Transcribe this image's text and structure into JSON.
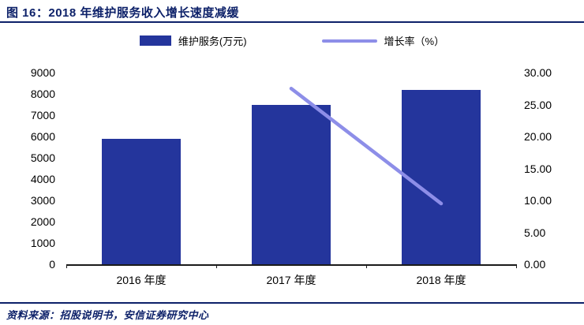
{
  "header": {
    "title": "图 16：2018 年维护服务收入增长速度减缓"
  },
  "legend": {
    "bar_label": "维护服务(万元)",
    "line_label": "增长率（%）"
  },
  "footer": {
    "source": "资料来源：招股说明书，安信证券研究中心"
  },
  "colors": {
    "navy": "#0d2169",
    "bar": "#24359c",
    "line": "#8d8ee8",
    "axis": "#1a1a1a",
    "text": "#000000"
  },
  "chart_data": {
    "type": "bar",
    "subtype": "bar+line combo, dual axis",
    "title": "图 16：2018 年维护服务收入增长速度减缓",
    "categories": [
      "2016 年度",
      "2017 年度",
      "2018 年度"
    ],
    "series": [
      {
        "name": "维护服务(万元)",
        "type": "bar",
        "axis": "left",
        "values": [
          5890,
          7500,
          8200
        ]
      },
      {
        "name": "增长率（%）",
        "type": "line",
        "axis": "right",
        "values": [
          null,
          27.5,
          9.5
        ]
      }
    ],
    "left_axis": {
      "min": 0,
      "max": 9000,
      "step": 1000,
      "decimals": 0
    },
    "right_axis": {
      "min": 0,
      "max": 30,
      "step": 5,
      "decimals": 2
    },
    "grid": false,
    "legend_position": "top"
  }
}
